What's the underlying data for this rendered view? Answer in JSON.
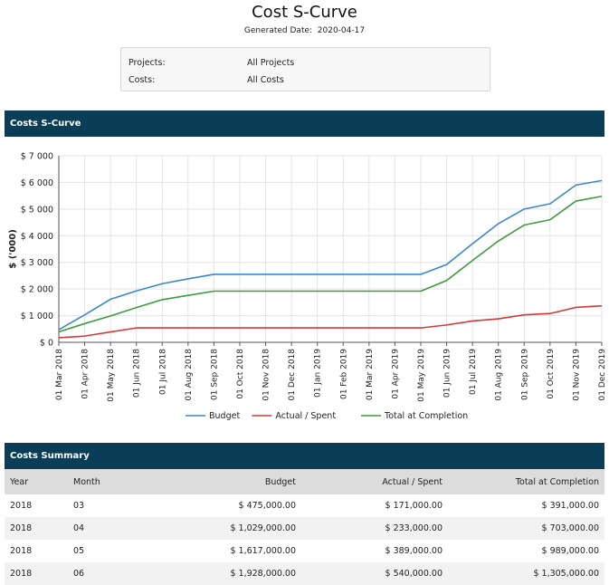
{
  "header": {
    "title": "Cost S-Curve",
    "generated_label": "Generated Date:",
    "generated_date": "2020-04-17"
  },
  "filters": [
    {
      "label": "Projects:",
      "value": "All Projects"
    },
    {
      "label": "Costs:",
      "value": "All Costs"
    }
  ],
  "chart_panel": {
    "title": "Costs S-Curve"
  },
  "chart_data": {
    "type": "line",
    "ylabel": "$ ('000)",
    "ylim": [
      0,
      7000
    ],
    "yticks": [
      {
        "v": 0,
        "label": "$ 0"
      },
      {
        "v": 1000,
        "label": "$ 1 000"
      },
      {
        "v": 2000,
        "label": "$ 2 000"
      },
      {
        "v": 3000,
        "label": "$ 3 000"
      },
      {
        "v": 4000,
        "label": "$ 4 000"
      },
      {
        "v": 5000,
        "label": "$ 5 000"
      },
      {
        "v": 6000,
        "label": "$ 6 000"
      },
      {
        "v": 7000,
        "label": "$ 7 000"
      }
    ],
    "categories": [
      "01 Mar 2018",
      "01 Apr 2018",
      "01 May 2018",
      "01 Jun 2018",
      "01 Jul 2018",
      "01 Aug 2018",
      "01 Sep 2018",
      "01 Oct 2018",
      "01 Nov 2018",
      "01 Dec 2018",
      "01 Jan 2019",
      "01 Feb 2019",
      "01 Mar 2019",
      "01 Apr 2019",
      "01 May 2019",
      "01 Jun 2019",
      "01 Jul 2019",
      "01 Aug 2019",
      "01 Sep 2019",
      "01 Oct 2019",
      "01 Nov 2019",
      "01 Dec 2019"
    ],
    "grid": true,
    "legend": "bottom",
    "series": [
      {
        "name": "Budget",
        "color": "#3a87cf",
        "values": [
          475,
          1029,
          1617,
          1928,
          2200,
          2380,
          2550,
          2550,
          2550,
          2550,
          2550,
          2550,
          2550,
          2550,
          2550,
          2920,
          3700,
          4450,
          5000,
          5200,
          5900,
          6070
        ]
      },
      {
        "name": "Actual / Spent",
        "color": "#d23a3a",
        "values": [
          171,
          233,
          389,
          540,
          540,
          540,
          540,
          540,
          540,
          540,
          540,
          540,
          540,
          540,
          540,
          650,
          800,
          880,
          1030,
          1080,
          1310,
          1370
        ]
      },
      {
        "name": "Total at Completion",
        "color": "#3f9a3f",
        "values": [
          391,
          703,
          989,
          1305,
          1600,
          1760,
          1920,
          1920,
          1920,
          1920,
          1920,
          1920,
          1920,
          1920,
          1920,
          2320,
          3070,
          3800,
          4400,
          4600,
          5300,
          5480
        ]
      }
    ]
  },
  "summary": {
    "title": "Costs Summary",
    "columns": [
      "Year",
      "Month",
      "Budget",
      "Actual / Spent",
      "Total at Completion"
    ],
    "rows": [
      [
        "2018",
        "03",
        "$ 475,000.00",
        "$ 171,000.00",
        "$ 391,000.00"
      ],
      [
        "2018",
        "04",
        "$ 1,029,000.00",
        "$ 233,000.00",
        "$ 703,000.00"
      ],
      [
        "2018",
        "05",
        "$ 1,617,000.00",
        "$ 389,000.00",
        "$ 989,000.00"
      ],
      [
        "2018",
        "06",
        "$ 1,928,000.00",
        "$ 540,000.00",
        "$ 1,305,000.00"
      ]
    ]
  }
}
